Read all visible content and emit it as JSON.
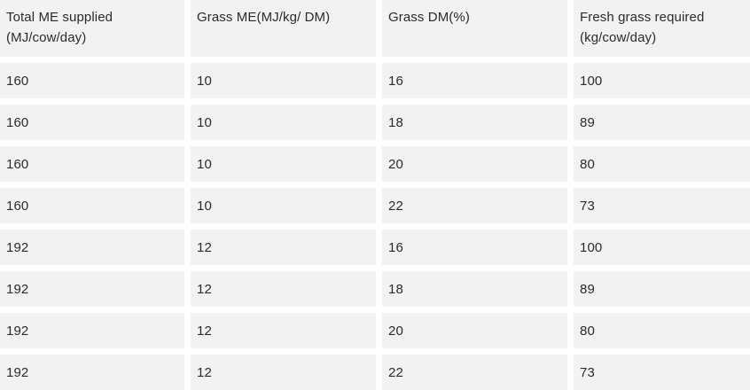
{
  "table": {
    "headers": [
      "Total ME supplied\n(MJ/cow/day)",
      "Grass ME(MJ/kg/ DM)",
      "Grass DM(%)",
      "Fresh grass required\n(kg/cow/day)"
    ],
    "rows": [
      [
        "160",
        "10",
        "16",
        "100"
      ],
      [
        "160",
        "10",
        "18",
        "89"
      ],
      [
        "160",
        "10",
        "20",
        "80"
      ],
      [
        "160",
        "10",
        "22",
        "73"
      ],
      [
        "192",
        "12",
        "16",
        "100"
      ],
      [
        "192",
        "12",
        "18",
        "89"
      ],
      [
        "192",
        "12",
        "20",
        "80"
      ],
      [
        "192",
        "12",
        "22",
        "73"
      ]
    ]
  }
}
